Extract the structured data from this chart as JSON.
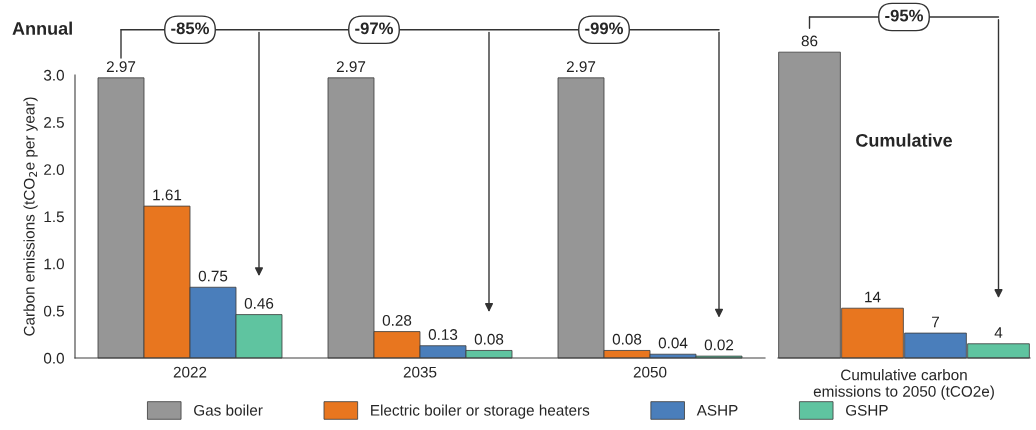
{
  "chart_data": [
    {
      "type": "bar",
      "title": "Annual",
      "ylabel": "Carbon emissions (tCO$_{2}$e per year)",
      "categories": [
        "2022",
        "2035",
        "2050"
      ],
      "series": [
        {
          "name": "Gas boiler",
          "color": "#969696",
          "values": [
            2.97,
            2.97,
            2.97
          ]
        },
        {
          "name": "Electric boiler or storage heaters",
          "color": "#e8761f",
          "values": [
            1.61,
            0.28,
            0.08
          ]
        },
        {
          "name": "ASHP",
          "color": "#4a7ebb",
          "values": [
            0.75,
            0.13,
            0.04
          ]
        },
        {
          "name": "GSHP",
          "color": "#5fc4a0",
          "values": [
            0.46,
            0.08,
            0.02
          ]
        }
      ],
      "ylim": [
        0,
        3.0
      ],
      "yticks": [
        {
          "value": 0,
          "label": "0.0"
        },
        {
          "value": 0.5,
          "label": "0.5"
        },
        {
          "value": 1.0,
          "label": "1.0"
        },
        {
          "value": 1.5,
          "label": "1.5"
        },
        {
          "value": 2.0,
          "label": "2.0"
        },
        {
          "value": 2.5,
          "label": "2.5"
        },
        {
          "value": 3.0,
          "label": "3.0"
        }
      ],
      "data_labels": true,
      "grid": false,
      "legend": "bottom",
      "annotations": [
        "-85%",
        "-97%",
        "-99%"
      ]
    },
    {
      "type": "bar",
      "title": "Cumulative",
      "xlabel": "Cumulative carbon emissions to 2050 (tCO2e)",
      "categories": [
        null,
        null,
        null,
        null
      ],
      "values": [
        86,
        14,
        7,
        4
      ],
      "colors": [
        "#969696",
        "#e8761f",
        "#4a7ebb",
        "#5fc4a0"
      ],
      "data_labels": true,
      "grid": false,
      "annotations": [
        "-95%"
      ]
    }
  ]
}
